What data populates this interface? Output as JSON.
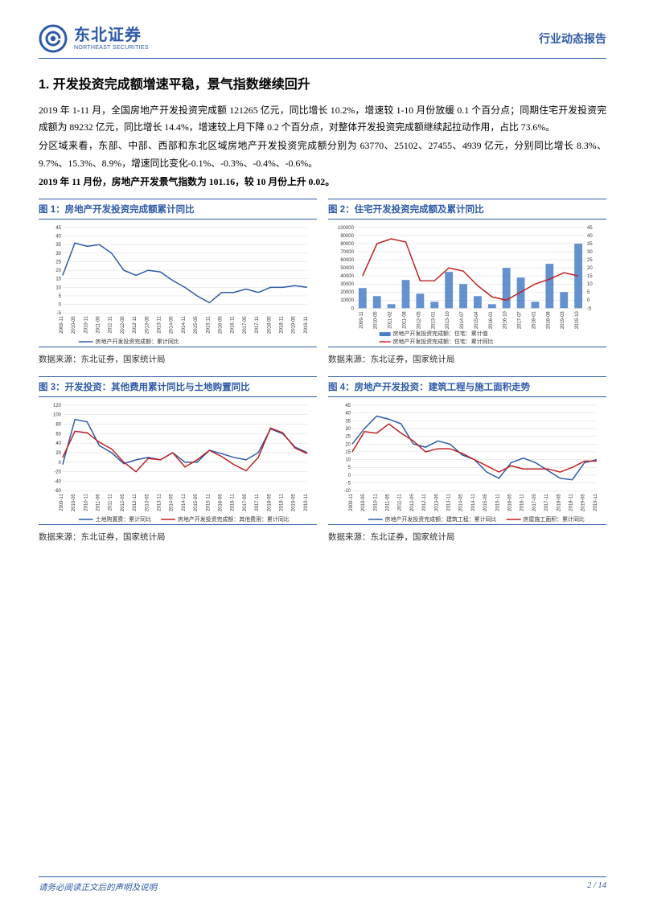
{
  "header": {
    "logo_cn": "东北证券",
    "logo_en": "NORTHEAST SECURITIES",
    "report_type": "行业动态报告"
  },
  "section": {
    "number": "1.",
    "title": "开发投资完成额增速平稳，景气指数继续回升",
    "paragraphs": [
      "2019 年 1-11 月，全国房地产开发投资完成额 121265 亿元，同比增长 10.2%，增速较 1-10 月份放缓 0.1 个百分点；同期住宅开发投资完成额为 89232 亿元，同比增长 14.4%，增速较上月下降 0.2 个百分点，对整体开发投资完成额继续起拉动作用，占比 73.6%。",
      "分区域来看，东部、中部、西部和东北区域房地产开发投资完成额分别为 63770、25102、27455、4939 亿元，分别同比增长 8.3%、9.7%、15.3%、8.9%，增速同比变化-0.1%、-0.3%、-0.4%、-0.6%。"
    ],
    "bold_line": "2019 年 11 月份，房地产开发景气指数为 101.16，较 10 月份上升 0.02。"
  },
  "charts": [
    {
      "id": "chart1",
      "title": "图 1：房地产开发投资完成额累计同比",
      "type": "line",
      "source": "数据来源：东北证券，国家统计局",
      "x_labels": [
        "2009-11",
        "2010-05",
        "2010-11",
        "2011-05",
        "2011-11",
        "2012-05",
        "2012-11",
        "2013-05",
        "2013-11",
        "2014-05",
        "2014-11",
        "2015-05",
        "2015-11",
        "2016-05",
        "2016-11",
        "2017-05",
        "2017-11",
        "2018-05",
        "2018-11",
        "2019-05",
        "2019-11"
      ],
      "ylim": [
        -5,
        45
      ],
      "ytick_step": 5,
      "series": [
        {
          "name": "房地产开发投资完成额：累计同比",
          "color": "#2d5aa8",
          "width": 1.5,
          "values": [
            17,
            36,
            34,
            35,
            30,
            20,
            17,
            20,
            19,
            14,
            10,
            5,
            1,
            7,
            7,
            9,
            7,
            10,
            10,
            11,
            10
          ]
        }
      ],
      "background": "#ffffff",
      "grid_color": "#d8d8d8",
      "label_fontsize": 6,
      "legend_fontsize": 7
    },
    {
      "id": "chart2",
      "title": "图 2：住宅开发投资完成额及累计同比",
      "type": "bar+line",
      "source": "数据来源：东北证券，国家统计局",
      "x_labels": [
        "2009-11",
        "2010-05",
        "2011-02",
        "2011-08",
        "2012-05",
        "2013-01",
        "2013-10",
        "2014-07",
        "2015-04",
        "2016-01",
        "2016-10",
        "2017-07",
        "2018-01",
        "2018-08",
        "2019-03",
        "2019-10"
      ],
      "ylim_left": [
        0,
        100000
      ],
      "ytick_left": 10000,
      "ylim_right": [
        -5,
        45
      ],
      "ytick_right": 5,
      "bar_series": {
        "name": "房地产开发投资完成额：住宅：累计值",
        "color": "#4a7ec7",
        "values": [
          25000,
          15000,
          5000,
          35000,
          18000,
          8000,
          45000,
          30000,
          15000,
          5000,
          50000,
          38000,
          8000,
          55000,
          20000,
          80000
        ]
      },
      "line_series": {
        "name": "房地产开发投资完成额：住宅：累计同比",
        "color": "#c02020",
        "width": 1.5,
        "values": [
          15,
          35,
          38,
          36,
          12,
          12,
          20,
          18,
          9,
          2,
          0,
          5,
          10,
          13,
          17,
          15
        ]
      },
      "background": "#ffffff",
      "grid_color": "#d8d8d8",
      "label_fontsize": 6,
      "legend_fontsize": 7
    },
    {
      "id": "chart3",
      "title": "图 3：开发投资：其他费用累计同比与土地购置同比",
      "type": "line",
      "source": "数据来源：东北证券，国家统计局",
      "x_labels": [
        "2009-11",
        "2010-05",
        "2010-11",
        "2011-05",
        "2011-11",
        "2012-05",
        "2012-11",
        "2013-05",
        "2013-11",
        "2014-05",
        "2014-11",
        "2015-05",
        "2015-11",
        "2016-05",
        "2016-11",
        "2017-05",
        "2017-11",
        "2018-05",
        "2018-11",
        "2019-05",
        "2019-11"
      ],
      "ylim": [
        -60,
        120
      ],
      "ytick_step": 20,
      "series": [
        {
          "name": "土地购置费：累计同比",
          "color": "#2d5aa8",
          "width": 1.5,
          "values": [
            -5,
            90,
            85,
            35,
            20,
            -3,
            5,
            10,
            5,
            20,
            0,
            0,
            25,
            18,
            10,
            5,
            20,
            70,
            60,
            32,
            20
          ]
        },
        {
          "name": "房地产开发投资完成额：其他费用：累计同比",
          "color": "#c02020",
          "width": 1.5,
          "values": [
            10,
            65,
            62,
            42,
            28,
            0,
            -20,
            8,
            5,
            20,
            -10,
            5,
            25,
            12,
            -5,
            -18,
            10,
            72,
            62,
            30,
            18
          ]
        }
      ],
      "background": "#ffffff",
      "grid_color": "#d8d8d8",
      "label_fontsize": 6,
      "legend_fontsize": 7
    },
    {
      "id": "chart4",
      "title": "图 4：房地产开发投资：建筑工程与施工面积走势",
      "type": "line",
      "source": "数据来源：东北证券，国家统计局",
      "x_labels": [
        "2009-11",
        "2010-05",
        "2010-11",
        "2011-05",
        "2011-11",
        "2012-05",
        "2012-11",
        "2013-05",
        "2013-11",
        "2014-05",
        "2014-11",
        "2015-05",
        "2015-11",
        "2016-05",
        "2016-11",
        "2017-05",
        "2017-11",
        "2018-05",
        "2018-11",
        "2019-05",
        "2019-11"
      ],
      "ylim": [
        -10,
        45
      ],
      "ytick_step": 5,
      "series": [
        {
          "name": "房地产开发投资完成额：建筑工程：累计同比",
          "color": "#2d5aa8",
          "width": 1.5,
          "values": [
            20,
            30,
            38,
            36,
            33,
            20,
            18,
            22,
            20,
            13,
            10,
            2,
            -2,
            8,
            11,
            8,
            3,
            -2,
            -3,
            8,
            10
          ]
        },
        {
          "name": "房屋施工面积：累计同比",
          "color": "#c02020",
          "width": 1.5,
          "values": [
            15,
            28,
            27,
            33,
            27,
            22,
            15,
            17,
            17,
            14,
            10,
            6,
            2,
            6,
            4,
            4,
            4,
            2,
            5,
            9,
            9
          ]
        }
      ],
      "background": "#ffffff",
      "grid_color": "#d8d8d8",
      "label_fontsize": 6,
      "legend_fontsize": 7
    }
  ],
  "footer": {
    "disclaimer": "请务必阅读正文后的声明及说明",
    "page": "2 / 14"
  },
  "logo": {
    "ring_color": "#2d5aa8"
  }
}
